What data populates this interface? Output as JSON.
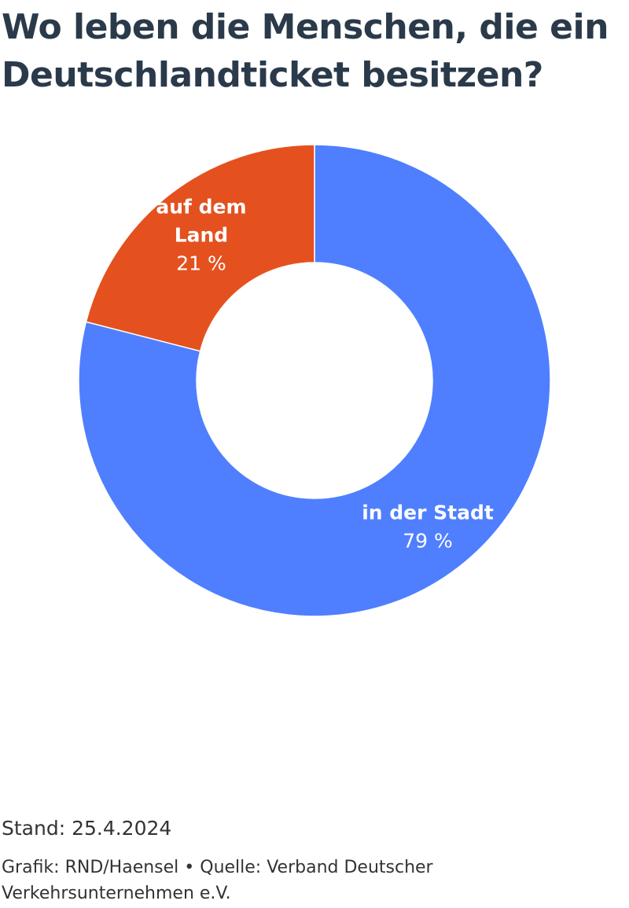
{
  "title": "Wo leben die Menschen, die ein Deutschlandticket besitzen?",
  "chart_data": {
    "type": "pie",
    "donut": true,
    "slices": [
      {
        "label": "in der Stadt",
        "value": 79,
        "value_label": "79 %",
        "color": "#4f7fff"
      },
      {
        "label": "auf dem Land",
        "value": 21,
        "value_label": "21 %",
        "color": "#e4511f"
      }
    ]
  },
  "footer": {
    "stand": "Stand: 25.4.2024",
    "credits": "Grafik: RND/Haensel • Quelle: Verband Deutscher Verkehrsunternehmen e.V."
  }
}
